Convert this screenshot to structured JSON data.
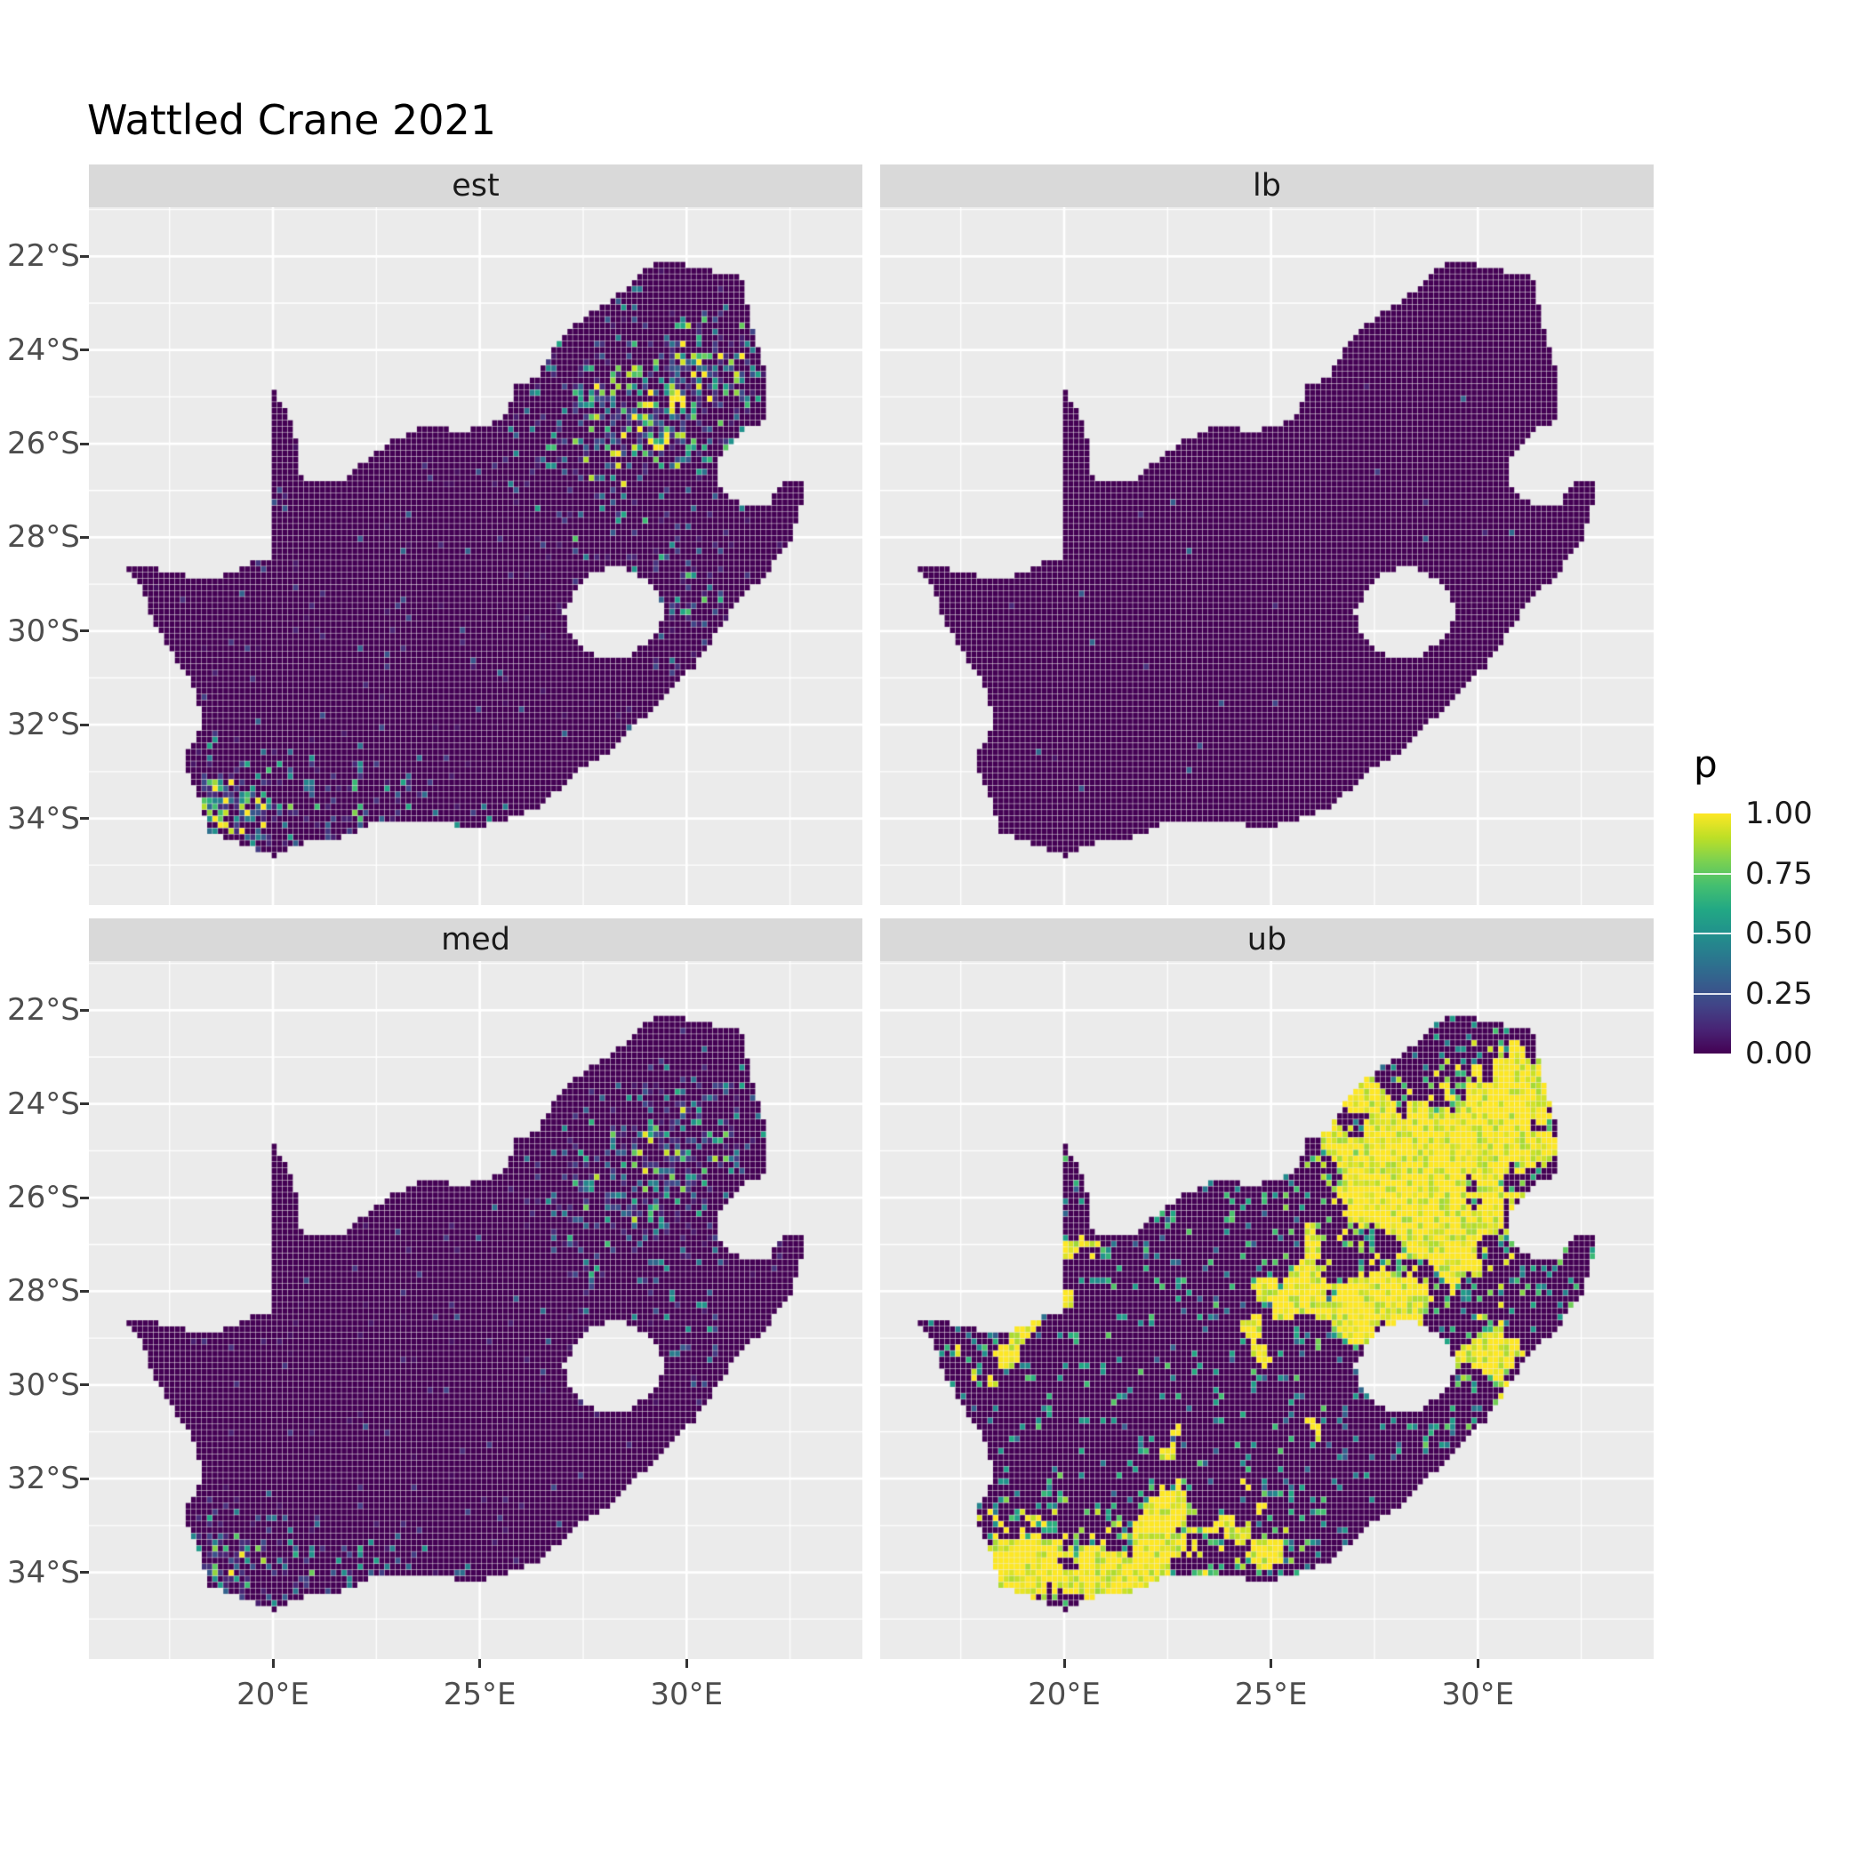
{
  "title": "Wattled Crane 2021",
  "facets": [
    {
      "id": "est",
      "label": "est"
    },
    {
      "id": "lb",
      "label": "lb"
    },
    {
      "id": "med",
      "label": "med"
    },
    {
      "id": "ub",
      "label": "ub"
    }
  ],
  "axes": {
    "x": {
      "ticks": [
        {
          "value": 20,
          "label": "20°E"
        },
        {
          "value": 25,
          "label": "25°E"
        },
        {
          "value": 30,
          "label": "30°E"
        }
      ]
    },
    "y": {
      "ticks": [
        {
          "value": -22,
          "label": "22°S"
        },
        {
          "value": -24,
          "label": "24°S"
        },
        {
          "value": -26,
          "label": "26°S"
        },
        {
          "value": -28,
          "label": "28°S"
        },
        {
          "value": -30,
          "label": "30°S"
        },
        {
          "value": -32,
          "label": "32°S"
        },
        {
          "value": -34,
          "label": "34°S"
        }
      ]
    }
  },
  "legend": {
    "title": "p",
    "labels": [
      "1.00",
      "0.75",
      "0.50",
      "0.25",
      "0.00"
    ]
  },
  "colors": {
    "figure_bg": "#FFFFFF",
    "panel_bg": "#EBEBEB",
    "gridline": "#FFFFFF",
    "strip_bg": "#D9D9D9",
    "strip_text": "#1A1A1A",
    "axis_text": "#4D4D4D",
    "tick_mark": "#333333",
    "title_text": "#000000",
    "raster_base": "#440154"
  },
  "chart_data": {
    "type": "heatmap",
    "title": "Wattled Crane 2021",
    "facet_variable_levels": [
      "est",
      "lb",
      "med",
      "ub"
    ],
    "value_variable": "p",
    "value_range": [
      0,
      1
    ],
    "legend_breaks": [
      1.0,
      0.75,
      0.5,
      0.25,
      0.0
    ],
    "legend_position": "right",
    "palette": "viridis",
    "palette_stops": [
      "#440154",
      "#482475",
      "#414487",
      "#355f8d",
      "#2a788e",
      "#21918c",
      "#22a884",
      "#44bf70",
      "#7ad151",
      "#bddf26",
      "#fde725"
    ],
    "x_axis": {
      "label": "",
      "tick_labels": [
        "20°E",
        "25°E",
        "30°E"
      ],
      "range_deg": [
        15.55,
        34.25
      ]
    },
    "y_axis": {
      "label": "",
      "tick_labels": [
        "22°S",
        "24°S",
        "26°S",
        "28°S",
        "30°S",
        "32°S",
        "34°S"
      ],
      "range_deg": [
        -35.85,
        -20.95
      ]
    },
    "grid": "white major and minor gridlines on grey panel",
    "region": "South Africa occurrence-probability raster map; Lesotho appears as a hole in the raster and Eswatini as a notch on the eastern border",
    "facet_patterns": [
      {
        "name": "est",
        "description": "Mostly p≈0 (dark purple) with scattered mixed-value cells; strong multicoloured hotspot reaching p≈1 (yellow) in the northeast around 23–27°S, 27–31°E, and a teal/green band with yellow flecks along the southern and southwestern coast"
      },
      {
        "name": "lb",
        "description": "Almost uniformly p≈0 (dark purple) with only a handful of barely visible low-value cells"
      },
      {
        "name": "med",
        "description": "Similar to est but weaker: sparse blue/teal speckle countrywide, moderate green-yellow hotspot in the northeast, teal speckle along the south coast"
      },
      {
        "name": "ub",
        "description": "Extensive high values: large contiguous yellow (p≈1) patches in the northeast and along the eastern regions, dense yellow/green speckle over the southwest Cape and south coast, scattered yellow patches elsewhere on a dark p≈0 background"
      }
    ],
    "geometry": {
      "south_africa_outline_lonlat": [
        [
          16.45,
          -28.6
        ],
        [
          17.4,
          -28.7
        ],
        [
          18.2,
          -28.87
        ],
        [
          19.0,
          -28.8
        ],
        [
          19.6,
          -28.5
        ],
        [
          19.99,
          -28.42
        ],
        [
          19.99,
          -24.76
        ],
        [
          20.35,
          -25.35
        ],
        [
          20.6,
          -26.0
        ],
        [
          20.65,
          -26.6
        ],
        [
          20.85,
          -26.85
        ],
        [
          21.6,
          -26.86
        ],
        [
          22.2,
          -26.4
        ],
        [
          22.9,
          -25.95
        ],
        [
          23.65,
          -25.6
        ],
        [
          24.4,
          -25.73
        ],
        [
          25.0,
          -25.68
        ],
        [
          25.6,
          -25.48
        ],
        [
          25.9,
          -24.74
        ],
        [
          26.4,
          -24.62
        ],
        [
          26.85,
          -23.85
        ],
        [
          27.15,
          -23.55
        ],
        [
          27.95,
          -23.05
        ],
        [
          28.55,
          -22.7
        ],
        [
          29.05,
          -22.2
        ],
        [
          29.7,
          -22.14
        ],
        [
          30.5,
          -22.3
        ],
        [
          31.3,
          -22.4
        ],
        [
          31.6,
          -23.55
        ],
        [
          31.9,
          -24.4
        ],
        [
          31.98,
          -25.1
        ],
        [
          31.97,
          -25.5
        ],
        [
          31.3,
          -25.75
        ],
        [
          30.82,
          -26.3
        ],
        [
          30.8,
          -26.85
        ],
        [
          31.1,
          -27.2
        ],
        [
          31.55,
          -27.32
        ],
        [
          31.97,
          -27.3
        ],
        [
          32.35,
          -26.86
        ],
        [
          32.9,
          -26.85
        ],
        [
          32.55,
          -28.0
        ],
        [
          31.95,
          -28.75
        ],
        [
          31.1,
          -29.55
        ],
        [
          30.7,
          -30.1
        ],
        [
          30.2,
          -30.75
        ],
        [
          29.45,
          -31.4
        ],
        [
          28.85,
          -31.95
        ],
        [
          28.2,
          -32.55
        ],
        [
          27.4,
          -33.0
        ],
        [
          26.45,
          -33.75
        ],
        [
          25.65,
          -34.03
        ],
        [
          24.85,
          -34.2
        ],
        [
          23.95,
          -34.1
        ],
        [
          23.35,
          -34.1
        ],
        [
          22.55,
          -34.05
        ],
        [
          21.75,
          -34.4
        ],
        [
          20.95,
          -34.45
        ],
        [
          20.0,
          -34.82
        ],
        [
          19.35,
          -34.6
        ],
        [
          18.85,
          -34.4
        ],
        [
          18.45,
          -34.3
        ],
        [
          18.35,
          -33.9
        ],
        [
          18.0,
          -33.15
        ],
        [
          17.85,
          -32.75
        ],
        [
          18.25,
          -32.05
        ],
        [
          18.2,
          -31.35
        ],
        [
          17.65,
          -30.6
        ],
        [
          17.05,
          -29.7
        ],
        [
          16.9,
          -29.2
        ]
      ],
      "lesotho_hole_lonlat": [
        [
          27.05,
          -29.6
        ],
        [
          27.35,
          -29.05
        ],
        [
          27.75,
          -28.78
        ],
        [
          28.4,
          -28.6
        ],
        [
          29.0,
          -28.88
        ],
        [
          29.38,
          -29.28
        ],
        [
          29.45,
          -29.75
        ],
        [
          29.12,
          -30.18
        ],
        [
          28.55,
          -30.55
        ],
        [
          28.0,
          -30.65
        ],
        [
          27.5,
          -30.4
        ],
        [
          27.18,
          -30.02
        ]
      ]
    }
  }
}
